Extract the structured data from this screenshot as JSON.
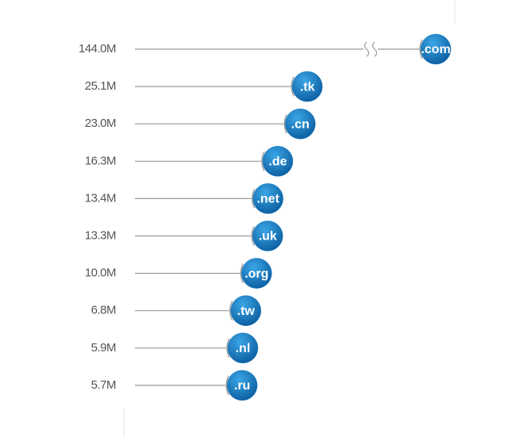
{
  "chart_data": {
    "type": "lollipop",
    "categories": [
      ".com",
      ".tk",
      ".cn",
      ".de",
      ".net",
      ".uk",
      ".org",
      ".tw",
      ".nl",
      ".ru"
    ],
    "values": [
      144.0,
      25.1,
      23.0,
      16.3,
      13.4,
      13.3,
      10.0,
      6.8,
      5.9,
      5.7
    ],
    "value_labels": [
      "144.0M",
      "25.1M",
      "23.0M",
      "16.3M",
      "13.4M",
      "13.3M",
      "10.0M",
      "6.8M",
      "5.9M",
      "5.7M"
    ],
    "color": "#1479c0",
    "axis_break": true
  }
}
